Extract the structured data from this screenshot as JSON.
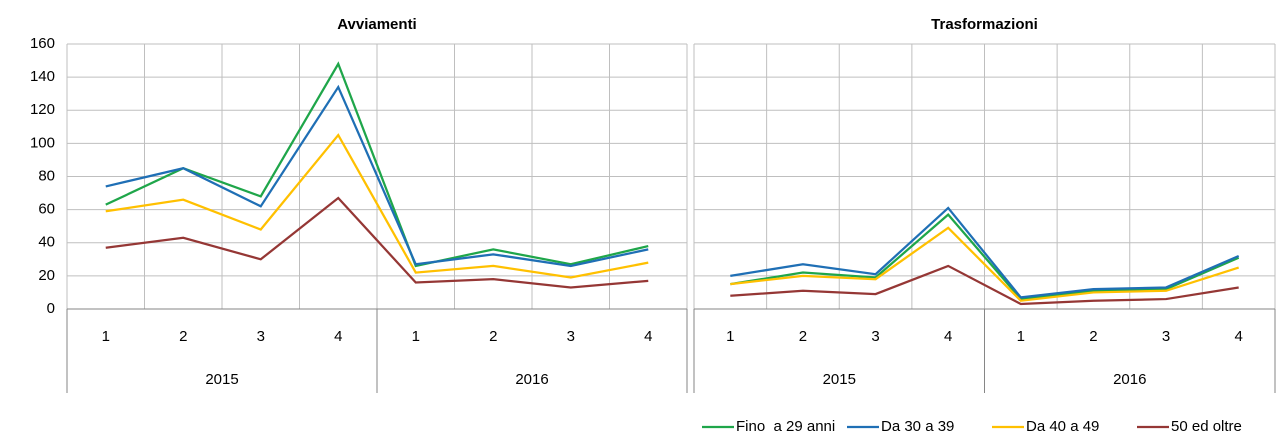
{
  "chart_data": [
    {
      "type": "line",
      "title": "Avviamenti",
      "categories": [
        "1",
        "2",
        "3",
        "4",
        "1",
        "2",
        "3",
        "4"
      ],
      "category_groups": [
        "2015",
        "2016"
      ],
      "ylim": [
        0,
        160
      ],
      "yticks": [
        0,
        20,
        40,
        60,
        80,
        100,
        120,
        140,
        160
      ],
      "show_yticks": true,
      "grid": true,
      "series": [
        {
          "name": "Fino  a 29 anni",
          "color": "#1fa64a",
          "values": [
            63,
            85,
            68,
            148,
            26,
            36,
            27,
            38
          ]
        },
        {
          "name": "Da 30 a 39",
          "color": "#1f6fb5",
          "values": [
            74,
            85,
            62,
            134,
            27,
            33,
            26,
            36
          ]
        },
        {
          "name": "Da 40 a 49",
          "color": "#ffc000",
          "values": [
            59,
            66,
            48,
            105,
            22,
            26,
            19,
            28
          ]
        },
        {
          "name": "50 ed oltre",
          "color": "#953735",
          "values": [
            37,
            43,
            30,
            67,
            16,
            18,
            13,
            17
          ]
        }
      ],
      "legend": "bottom-right"
    },
    {
      "type": "line",
      "title": "Trasformazioni",
      "categories": [
        "1",
        "2",
        "3",
        "4",
        "1",
        "2",
        "3",
        "4"
      ],
      "category_groups": [
        "2015",
        "2016"
      ],
      "ylim": [
        0,
        160
      ],
      "yticks": [
        0,
        20,
        40,
        60,
        80,
        100,
        120,
        140,
        160
      ],
      "show_yticks": false,
      "grid": true,
      "series": [
        {
          "name": "Fino  a 29 anni",
          "color": "#1fa64a",
          "values": [
            15,
            22,
            19,
            57,
            6,
            11,
            12,
            31
          ]
        },
        {
          "name": "Da 30 a 39",
          "color": "#1f6fb5",
          "values": [
            20,
            27,
            21,
            61,
            7,
            12,
            13,
            32
          ]
        },
        {
          "name": "Da 40 a 49",
          "color": "#ffc000",
          "values": [
            15,
            20,
            18,
            49,
            5,
            10,
            11,
            25
          ]
        },
        {
          "name": "50 ed oltre",
          "color": "#953735",
          "values": [
            8,
            11,
            9,
            26,
            3,
            5,
            6,
            13
          ]
        }
      ]
    }
  ]
}
